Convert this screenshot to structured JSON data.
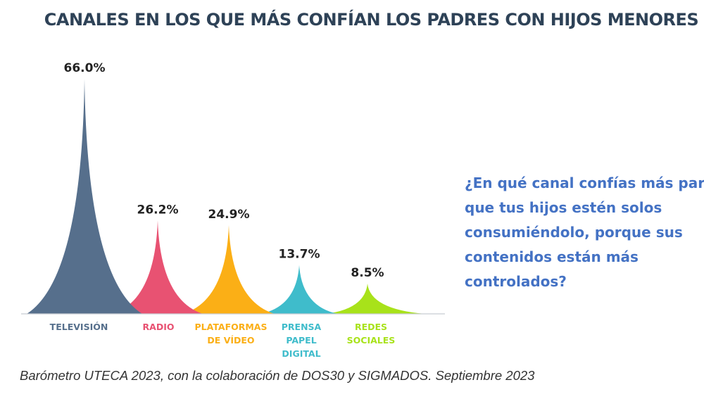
{
  "chart_data": {
    "type": "bar",
    "title": "CANALES EN LOS QUE MÁS CONFÍAN LOS PADRES CON HIJOS MENORES",
    "categories": [
      [
        "TELEVISIÓN"
      ],
      [
        "RADIO"
      ],
      [
        "PLATAFORMAS",
        "DE VÍDEO"
      ],
      [
        "PRENSA",
        "PAPEL",
        "DIGITAL"
      ],
      [
        "REDES",
        "SOCIALES"
      ]
    ],
    "values": [
      66.0,
      26.2,
      24.9,
      13.7,
      8.5
    ],
    "data_labels": [
      "66.0%",
      "26.2%",
      "24.9%",
      "13.7%",
      "8.5%"
    ],
    "colors": [
      "#566f8c",
      "#e85272",
      "#fbaf16",
      "#3fbccb",
      "#a8e21a"
    ],
    "ylim": [
      0,
      66
    ],
    "grid": false,
    "mark_shape": "cusp-peak"
  },
  "question": {
    "lines": [
      "¿En qué canal confías más para",
      "que tus hijos estén solos",
      "consumiéndolo, porque sus",
      "contenidos están más",
      "controlados?"
    ]
  },
  "footer": "Barómetro UTECA 2023, con la colaboración de DOS30 y SIGMADOS. Septiembre 2023"
}
